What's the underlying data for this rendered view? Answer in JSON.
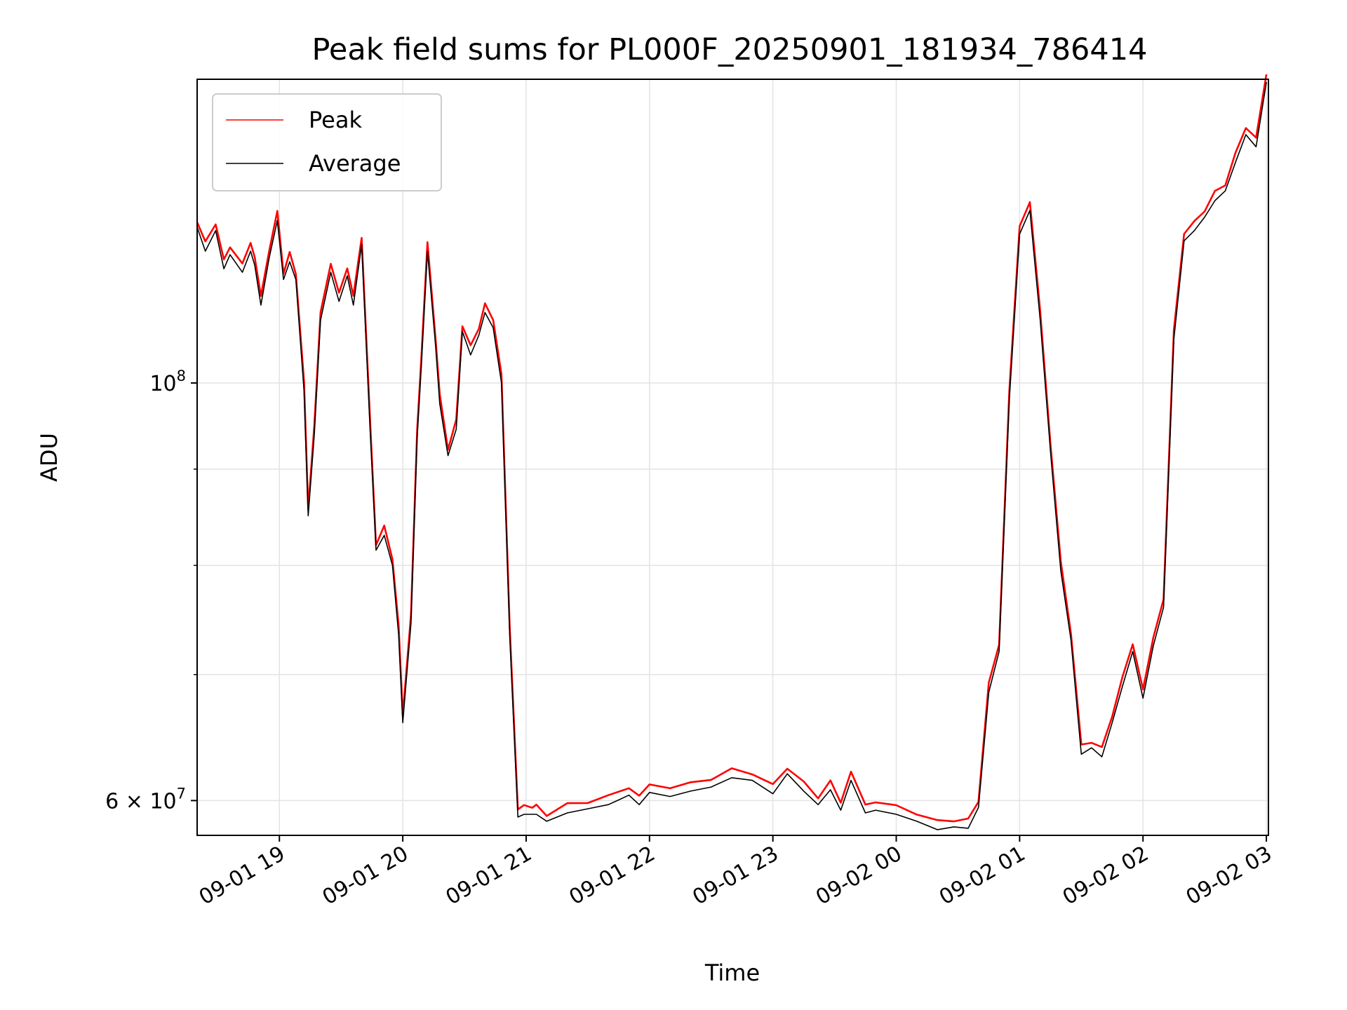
{
  "chart_data": {
    "type": "line",
    "title": "Peak field sums for PL000F_20250901_181934_786414",
    "xlabel": "Time",
    "ylabel": "ADU",
    "yscale": "log",
    "xlim": [
      "2025-09-01 18:20",
      "2025-09-02 03:01"
    ],
    "ylim": [
      57500000,
      145000000
    ],
    "x_ticks": [
      "09-01 19",
      "09-01 20",
      "09-01 21",
      "09-01 22",
      "09-01 23",
      "09-02 00",
      "09-02 01",
      "09-02 02",
      "09-02 03"
    ],
    "y_ticks": [
      {
        "value": 100000000,
        "base": "10",
        "exp": "8"
      },
      {
        "value": 60000000,
        "mantissa": "6",
        "times": "×",
        "base": "10",
        "exp": "7"
      }
    ],
    "y_minor_ticks": [
      70000000,
      80000000,
      90000000
    ],
    "grid": true,
    "legend_position": "upper-left",
    "series": [
      {
        "name": "Peak",
        "color": "#ff0000",
        "linewidth": 1.2
      },
      {
        "name": "Average",
        "color": "#000000",
        "linewidth": 1.2
      }
    ],
    "x": [
      "2025-09-01 18:20",
      "2025-09-01 18:24",
      "2025-09-01 18:29",
      "2025-09-01 18:33",
      "2025-09-01 18:36",
      "2025-09-01 18:42",
      "2025-09-01 18:46",
      "2025-09-01 18:48",
      "2025-09-01 18:51",
      "2025-09-01 18:55",
      "2025-09-01 18:59",
      "2025-09-01 19:02",
      "2025-09-01 19:05",
      "2025-09-01 19:08",
      "2025-09-01 19:12",
      "2025-09-01 19:14",
      "2025-09-01 19:17",
      "2025-09-01 19:20",
      "2025-09-01 19:25",
      "2025-09-01 19:29",
      "2025-09-01 19:33",
      "2025-09-01 19:36",
      "2025-09-01 19:40",
      "2025-09-01 19:44",
      "2025-09-01 19:47",
      "2025-09-01 19:51",
      "2025-09-01 19:55",
      "2025-09-01 19:58",
      "2025-09-01 20:00",
      "2025-09-01 20:04",
      "2025-09-01 20:07",
      "2025-09-01 20:09",
      "2025-09-01 20:12",
      "2025-09-01 20:16",
      "2025-09-01 20:18",
      "2025-09-01 20:22",
      "2025-09-01 20:26",
      "2025-09-01 20:29",
      "2025-09-01 20:33",
      "2025-09-01 20:37",
      "2025-09-01 20:40",
      "2025-09-01 20:44",
      "2025-09-01 20:48",
      "2025-09-01 20:52",
      "2025-09-01 20:56",
      "2025-09-01 20:59",
      "2025-09-01 21:03",
      "2025-09-01 21:05",
      "2025-09-01 21:10",
      "2025-09-01 21:20",
      "2025-09-01 21:30",
      "2025-09-01 21:40",
      "2025-09-01 21:50",
      "2025-09-01 21:55",
      "2025-09-01 22:00",
      "2025-09-01 22:10",
      "2025-09-01 22:20",
      "2025-09-01 22:30",
      "2025-09-01 22:40",
      "2025-09-01 22:50",
      "2025-09-01 23:00",
      "2025-09-01 23:07",
      "2025-09-01 23:15",
      "2025-09-01 23:22",
      "2025-09-01 23:28",
      "2025-09-01 23:33",
      "2025-09-01 23:38",
      "2025-09-01 23:45",
      "2025-09-01 23:50",
      "2025-09-02 00:00",
      "2025-09-02 00:10",
      "2025-09-02 00:20",
      "2025-09-02 00:28",
      "2025-09-02 00:35",
      "2025-09-02 00:40",
      "2025-09-02 00:45",
      "2025-09-02 00:50",
      "2025-09-02 00:55",
      "2025-09-02 01:00",
      "2025-09-02 01:05",
      "2025-09-02 01:10",
      "2025-09-02 01:15",
      "2025-09-02 01:20",
      "2025-09-02 01:25",
      "2025-09-02 01:30",
      "2025-09-02 01:35",
      "2025-09-02 01:40",
      "2025-09-02 01:45",
      "2025-09-02 01:50",
      "2025-09-02 01:55",
      "2025-09-02 02:00",
      "2025-09-02 02:05",
      "2025-09-02 02:10",
      "2025-09-02 02:15",
      "2025-09-02 02:20",
      "2025-09-02 02:25",
      "2025-09-02 02:30",
      "2025-09-02 02:35",
      "2025-09-02 02:40",
      "2025-09-02 02:45",
      "2025-09-02 02:50",
      "2025-09-02 02:55",
      "2025-09-02 03:00"
    ],
    "average": [
      121000000,
      117500000,
      120500000,
      115000000,
      117000000,
      114500000,
      117500000,
      115500000,
      110000000,
      116500000,
      122000000,
      113500000,
      116000000,
      113500000,
      99000000,
      85000000,
      94000000,
      108000000,
      114500000,
      110500000,
      114000000,
      110000000,
      118500000,
      95000000,
      81500000,
      83000000,
      80000000,
      73500000,
      66000000,
      74500000,
      93500000,
      102000000,
      117500000,
      104500000,
      97500000,
      91500000,
      94500000,
      106500000,
      103500000,
      106000000,
      109000000,
      107000000,
      100000000,
      73500000,
      58800000,
      59000000,
      59000000,
      59000000,
      58500000,
      59100000,
      59400000,
      59700000,
      60400000,
      59700000,
      60600000,
      60300000,
      60700000,
      61000000,
      61700000,
      61500000,
      60500000,
      62000000,
      60700000,
      59700000,
      60800000,
      59300000,
      61500000,
      59100000,
      59300000,
      59000000,
      58500000,
      57900000,
      58100000,
      58000000,
      59500000,
      68500000,
      72000000,
      98000000,
      120000000,
      123500000,
      108000000,
      92000000,
      79500000,
      73000000,
      63500000,
      64000000,
      63300000,
      66000000,
      69000000,
      72000000,
      68000000,
      72500000,
      76000000,
      105500000,
      119000000,
      120500000,
      122500000,
      125000000,
      126500000,
      131000000,
      135500000,
      133500000,
      144500000
    ]
  }
}
